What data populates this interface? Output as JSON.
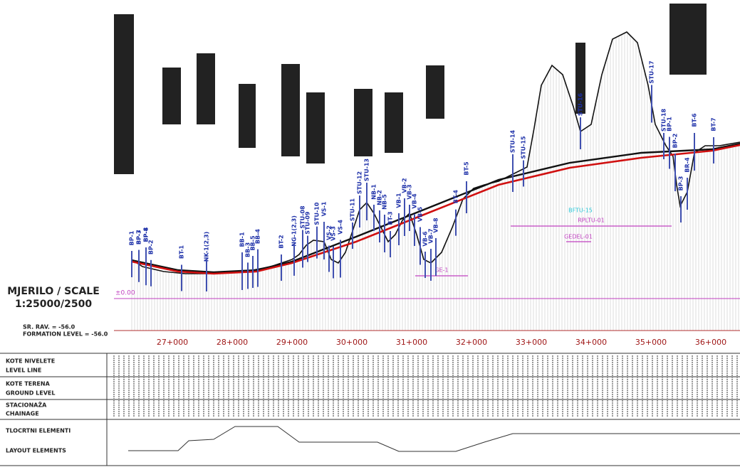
{
  "scale": {
    "title": "MJERILO / SCALE",
    "value": "1:25000/2500"
  },
  "levels": {
    "sr_rav": "SR. RAV. = -56.0",
    "formation": "FORMATION LEVEL = -56.0",
    "zero": "±0.00"
  },
  "chainages": [
    "27+000",
    "28+000",
    "29+000",
    "30+000",
    "31+000",
    "32+000",
    "33+000",
    "34+000",
    "35+000",
    "36+000"
  ],
  "table_rows": [
    {
      "local": "KOTE NIVELETE",
      "english": "LEVEL LINE"
    },
    {
      "local": "KOTE TERENA",
      "english": "GROUND LEVEL"
    },
    {
      "local": "STACIONAŽA",
      "english": "CHAINAGE"
    },
    {
      "local": "TLOCRTNI ELEMENTI",
      "english": "LAYOUT ELEMENTS"
    }
  ],
  "boreholes": [
    "BP-1",
    "BP-3",
    "BP-4",
    "BP-2",
    "BP-7",
    "BP-8",
    "BT-1",
    "NK-1(2,3)",
    "BB-1",
    "BB-3",
    "BB-5",
    "BB-4",
    "BT-2",
    "NG-1(2,3)",
    "STU-08",
    "STU-09",
    "STU-10",
    "VS-1",
    "VS-2",
    "VS-3",
    "VS-4",
    "STU-11",
    "STU-12",
    "STU-13",
    "NB-1",
    "NB-2",
    "NB-5",
    "BT-3",
    "VB-1",
    "VB-2",
    "VB-3",
    "VB-4",
    "VB-5",
    "VB-6",
    "VB-7",
    "VB-8",
    "BT-4",
    "BT-5",
    "STU-14",
    "STU-15",
    "STU-16",
    "STU-17",
    "STU-18",
    "BP-1",
    "BP-2",
    "BP-3",
    "BR-4",
    "BT-6",
    "BT-7"
  ],
  "zones": [
    "GE-1",
    "RPLTU-01",
    "GEDEL-01",
    "BFTU-15"
  ]
}
